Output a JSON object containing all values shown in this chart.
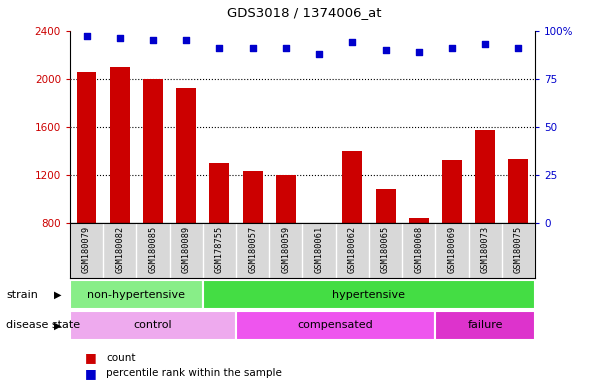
{
  "title": "GDS3018 / 1374006_at",
  "samples": [
    "GSM180079",
    "GSM180082",
    "GSM180085",
    "GSM180089",
    "GSM178755",
    "GSM180057",
    "GSM180059",
    "GSM180061",
    "GSM180062",
    "GSM180065",
    "GSM180068",
    "GSM180069",
    "GSM180073",
    "GSM180075"
  ],
  "counts": [
    2060,
    2100,
    2000,
    1920,
    1300,
    1230,
    1200,
    790,
    1400,
    1080,
    840,
    1320,
    1570,
    1330
  ],
  "percentiles": [
    97,
    96,
    95,
    95,
    91,
    91,
    91,
    88,
    94,
    90,
    89,
    91,
    93,
    91
  ],
  "ylim_left": [
    800,
    2400
  ],
  "ylim_right": [
    0,
    100
  ],
  "yticks_left": [
    800,
    1200,
    1600,
    2000,
    2400
  ],
  "yticks_right": [
    0,
    25,
    50,
    75,
    100
  ],
  "bar_color": "#cc0000",
  "dot_color": "#0000cc",
  "strain_groups": [
    {
      "label": "non-hypertensive",
      "start": 0,
      "end": 4,
      "color": "#88ee88"
    },
    {
      "label": "hypertensive",
      "start": 4,
      "end": 14,
      "color": "#44dd44"
    }
  ],
  "disease_groups": [
    {
      "label": "control",
      "start": 0,
      "end": 5,
      "color": "#ee99ee"
    },
    {
      "label": "compensated",
      "start": 5,
      "end": 11,
      "color": "#ee66ee"
    },
    {
      "label": "failure",
      "start": 11,
      "end": 14,
      "color": "#dd44dd"
    }
  ],
  "legend_count_label": "count",
  "legend_pct_label": "percentile rank within the sample",
  "strain_label": "strain",
  "disease_label": "disease state",
  "tick_color_left": "#cc0000",
  "tick_color_right": "#0000cc"
}
